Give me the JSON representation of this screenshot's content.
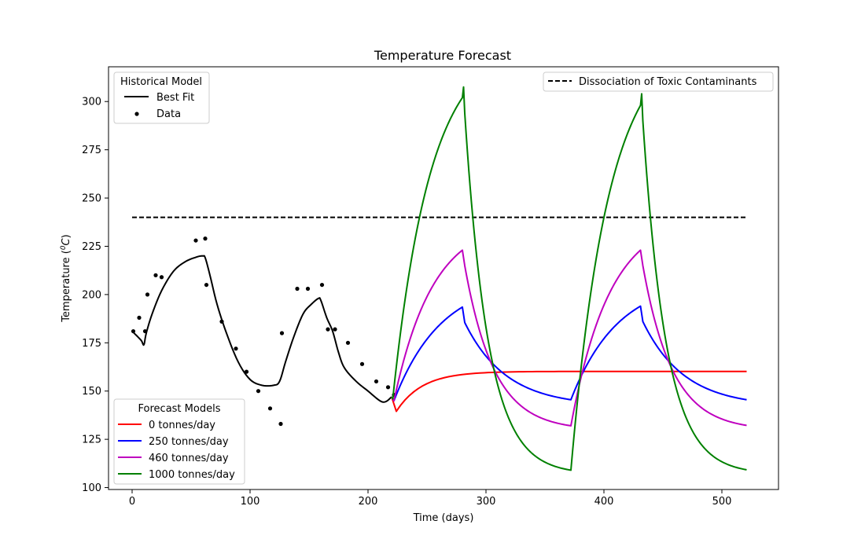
{
  "chart_data": {
    "type": "line",
    "title": "Temperature Forecast",
    "xlabel": "Time (days)",
    "ylabel_prefix": "Temperature (",
    "ylabel_super": "0",
    "ylabel_unit": "C",
    "ylabel_suffix": ")",
    "xlim": [
      -20,
      548
    ],
    "ylim": [
      99,
      318
    ],
    "xticks": [
      0,
      100,
      200,
      300,
      400,
      500
    ],
    "yticks": [
      100,
      125,
      150,
      175,
      200,
      225,
      250,
      275,
      300
    ],
    "grid": false,
    "reference_line": {
      "name": "Dissociation of Toxic Contaminants",
      "y": 240,
      "x": [
        0,
        520
      ],
      "color": "#000000",
      "style": "dashed"
    },
    "historical": {
      "legend_title": "Historical Model",
      "legend_position": "top-left",
      "best_fit": {
        "name": "Best Fit",
        "color": "#000000",
        "points": [
          [
            0,
            181
          ],
          [
            5,
            178
          ],
          [
            8,
            176
          ],
          [
            10,
            174
          ],
          [
            12,
            180
          ],
          [
            17,
            190
          ],
          [
            25,
            202
          ],
          [
            35,
            212
          ],
          [
            45,
            217
          ],
          [
            55,
            219.5
          ],
          [
            60,
            220
          ],
          [
            62,
            219
          ],
          [
            66,
            210
          ],
          [
            72,
            195
          ],
          [
            80,
            180
          ],
          [
            90,
            165
          ],
          [
            100,
            156
          ],
          [
            110,
            153
          ],
          [
            120,
            153
          ],
          [
            125,
            155
          ],
          [
            130,
            165
          ],
          [
            137,
            178
          ],
          [
            145,
            190
          ],
          [
            152,
            195
          ],
          [
            158,
            198
          ],
          [
            160,
            197
          ],
          [
            165,
            188
          ],
          [
            170,
            181
          ],
          [
            175,
            170
          ],
          [
            180,
            162
          ],
          [
            190,
            155
          ],
          [
            200,
            150
          ],
          [
            210,
            145
          ],
          [
            215,
            144.5
          ],
          [
            220,
            147
          ]
        ]
      },
      "data": {
        "name": "Data",
        "color": "#000000",
        "points": [
          [
            1,
            181
          ],
          [
            6,
            188
          ],
          [
            11,
            181
          ],
          [
            13,
            200
          ],
          [
            20,
            210
          ],
          [
            25,
            209
          ],
          [
            54,
            228
          ],
          [
            62,
            229
          ],
          [
            63,
            205
          ],
          [
            76,
            186
          ],
          [
            88,
            172
          ],
          [
            97,
            160
          ],
          [
            107,
            150
          ],
          [
            117,
            141
          ],
          [
            126,
            133
          ],
          [
            127,
            180
          ],
          [
            140,
            203
          ],
          [
            149,
            203
          ],
          [
            161,
            205
          ],
          [
            166,
            182
          ],
          [
            172,
            182
          ],
          [
            183,
            175
          ],
          [
            195,
            164
          ],
          [
            207,
            155
          ],
          [
            217,
            152
          ],
          [
            222,
            148
          ]
        ]
      }
    },
    "forecast": {
      "legend_title": "Forecast Models",
      "legend_position": "bottom-left",
      "start_day": 220,
      "start_temp": 147,
      "series": [
        {
          "name": "0 tonnes/day",
          "color": "#ff0000",
          "dip_day": 224,
          "dip_temp": 139.5,
          "plateau": 160.2,
          "tau_rise": 22
        },
        {
          "name": "250 tonnes/day",
          "color": "#0000ff",
          "dip_day": 222,
          "dip_temp": 145,
          "peak1": 193.5,
          "trough1": 145.5,
          "peak2": 194,
          "end": 145.5,
          "tau_rise": 40,
          "tau_fall": 35
        },
        {
          "name": "460 tonnes/day",
          "color": "#bf00bf",
          "dip_day": 222,
          "dip_temp": 145,
          "peak1": 223,
          "trough1": 132,
          "peak2": 223,
          "end": 132.2,
          "tau_rise": 33,
          "tau_fall": 25
        },
        {
          "name": "1000 tonnes/day",
          "color": "#008000",
          "dip_day": 221,
          "dip_temp": 146,
          "peak1": 302,
          "spike1": 307.5,
          "trough1": 109,
          "peak2": 298,
          "spike2": 304,
          "end": 109.2,
          "tau_rise": 32,
          "tau_fall": 20
        }
      ],
      "switch_days": [
        281,
        372,
        432,
        521
      ]
    }
  }
}
